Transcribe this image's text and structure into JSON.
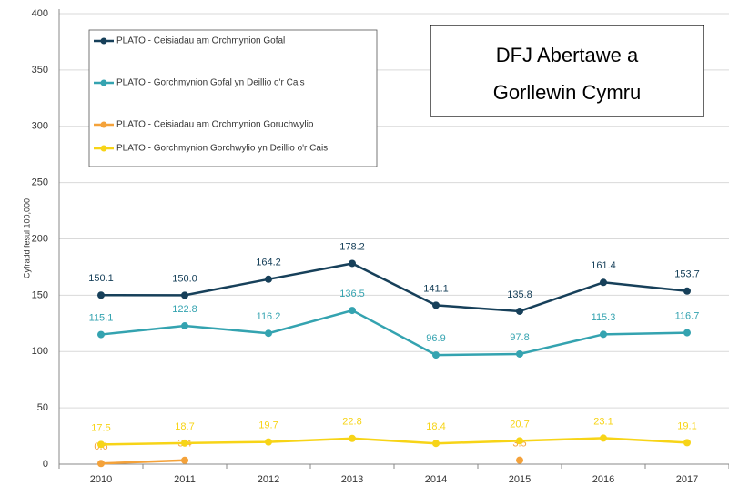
{
  "chart_data": {
    "type": "line",
    "annotation": [
      "DFJ Abertawe a",
      "Gorllewin Cymru"
    ],
    "y_label": "Cyfradd fesul 100,000",
    "categories": [
      "2010",
      "2011",
      "2012",
      "2013",
      "2014",
      "2015",
      "2016",
      "2017"
    ],
    "series": [
      {
        "name": "PLATO - Ceisiadau am Orchmynion Gofal",
        "color": "#17405a",
        "values": [
          150.1,
          150.0,
          164.2,
          178.2,
          141.1,
          135.8,
          161.4,
          153.7
        ],
        "value_labels": [
          "150.1",
          "150.0",
          "164.2",
          "178.2",
          "141.1",
          "135.8",
          "161.4",
          "153.7"
        ]
      },
      {
        "name": "PLATO - Gorchmynion Gofal yn Deillio o'r Cais",
        "color": "#34a3b0",
        "values": [
          115.1,
          122.8,
          116.2,
          136.5,
          96.9,
          97.8,
          115.3,
          116.7
        ]
      },
      {
        "name": "PLATO - Ceisiadau am Orchmynion Goruchwylio",
        "color": "#f4a23a",
        "values": [
          0.6,
          3.4,
          null,
          null,
          null,
          3.5,
          null,
          null
        ]
      },
      {
        "name": "PLATO - Gorchmynion Gorchwylio yn Deillio o'r Cais",
        "color": "#f7d417",
        "values": [
          17.5,
          18.7,
          19.7,
          22.8,
          18.4,
          20.7,
          23.1,
          19.1
        ]
      }
    ],
    "ylim": [
      0,
      400
    ],
    "yticks": [
      0,
      50,
      100,
      150,
      200,
      250,
      300,
      350,
      400
    ],
    "grid": true
  }
}
